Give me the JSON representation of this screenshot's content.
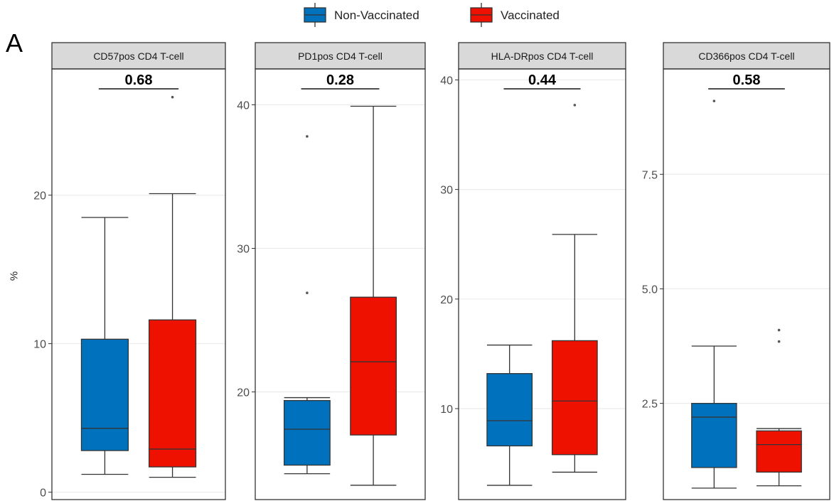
{
  "figure": {
    "panel_letter": "A",
    "ylabel": "%"
  },
  "colors": {
    "non_vaccinated": "#0072BD",
    "vaccinated": "#EE1100"
  },
  "chart_data": [
    {
      "type": "box",
      "title": "CD57pos CD4 T-cell",
      "p_value": "0.68",
      "ylim": [
        -0.5,
        28.5
      ],
      "yticks": [
        0,
        10,
        20
      ],
      "legend": [
        "Non-Vaccinated",
        "Vaccinated"
      ],
      "ylabel": "%",
      "series": [
        {
          "name": "Non-Vaccinated",
          "whisker_low": 1.2,
          "q1": 2.8,
          "median": 4.3,
          "q3": 10.3,
          "whisker_high": 18.5,
          "outliers": []
        },
        {
          "name": "Vaccinated",
          "whisker_low": 1.0,
          "q1": 1.7,
          "median": 2.9,
          "q3": 11.6,
          "whisker_high": 20.1,
          "outliers": [
            26.6
          ]
        }
      ]
    },
    {
      "type": "box",
      "title": "PD1pos CD4 T-cell",
      "p_value": "0.28",
      "ylim": [
        12.5,
        42.5
      ],
      "yticks": [
        20,
        30,
        40
      ],
      "legend": [
        "Non-Vaccinated",
        "Vaccinated"
      ],
      "series": [
        {
          "name": "Non-Vaccinated",
          "whisker_low": 14.3,
          "q1": 14.9,
          "median": 17.4,
          "q3": 19.4,
          "whisker_high": 19.6,
          "outliers": [
            26.9,
            37.8
          ]
        },
        {
          "name": "Vaccinated",
          "whisker_low": 13.5,
          "q1": 17.0,
          "median": 22.1,
          "q3": 26.6,
          "whisker_high": 39.9,
          "outliers": []
        }
      ]
    },
    {
      "type": "box",
      "title": "HLA-DRpos CD4 T-cell",
      "p_value": "0.44",
      "ylim": [
        1.7,
        41.0
      ],
      "yticks": [
        10,
        20,
        30,
        40
      ],
      "legend": [
        "Non-Vaccinated",
        "Vaccinated"
      ],
      "series": [
        {
          "name": "Non-Vaccinated",
          "whisker_low": 3.0,
          "q1": 6.6,
          "median": 8.9,
          "q3": 13.2,
          "whisker_high": 15.8,
          "outliers": []
        },
        {
          "name": "Vaccinated",
          "whisker_low": 4.2,
          "q1": 5.8,
          "median": 10.7,
          "q3": 16.2,
          "whisker_high": 25.9,
          "outliers": [
            37.7
          ]
        }
      ]
    },
    {
      "type": "box",
      "title": "CD366pos CD4 T-cell",
      "p_value": "0.58",
      "ylim": [
        0.4,
        9.8
      ],
      "yticks": [
        2.5,
        5.0,
        7.5
      ],
      "ytick_labels": [
        "2.5",
        "5.0",
        "7.5"
      ],
      "legend": [
        "Non-Vaccinated",
        "Vaccinated"
      ],
      "series": [
        {
          "name": "Non-Vaccinated",
          "whisker_low": 0.65,
          "q1": 1.1,
          "median": 2.2,
          "q3": 2.5,
          "whisker_high": 3.75,
          "outliers": [
            9.1
          ]
        },
        {
          "name": "Vaccinated",
          "whisker_low": 0.7,
          "q1": 1.0,
          "median": 1.6,
          "q3": 1.9,
          "whisker_high": 1.95,
          "outliers": [
            3.85,
            4.1
          ]
        }
      ]
    }
  ]
}
